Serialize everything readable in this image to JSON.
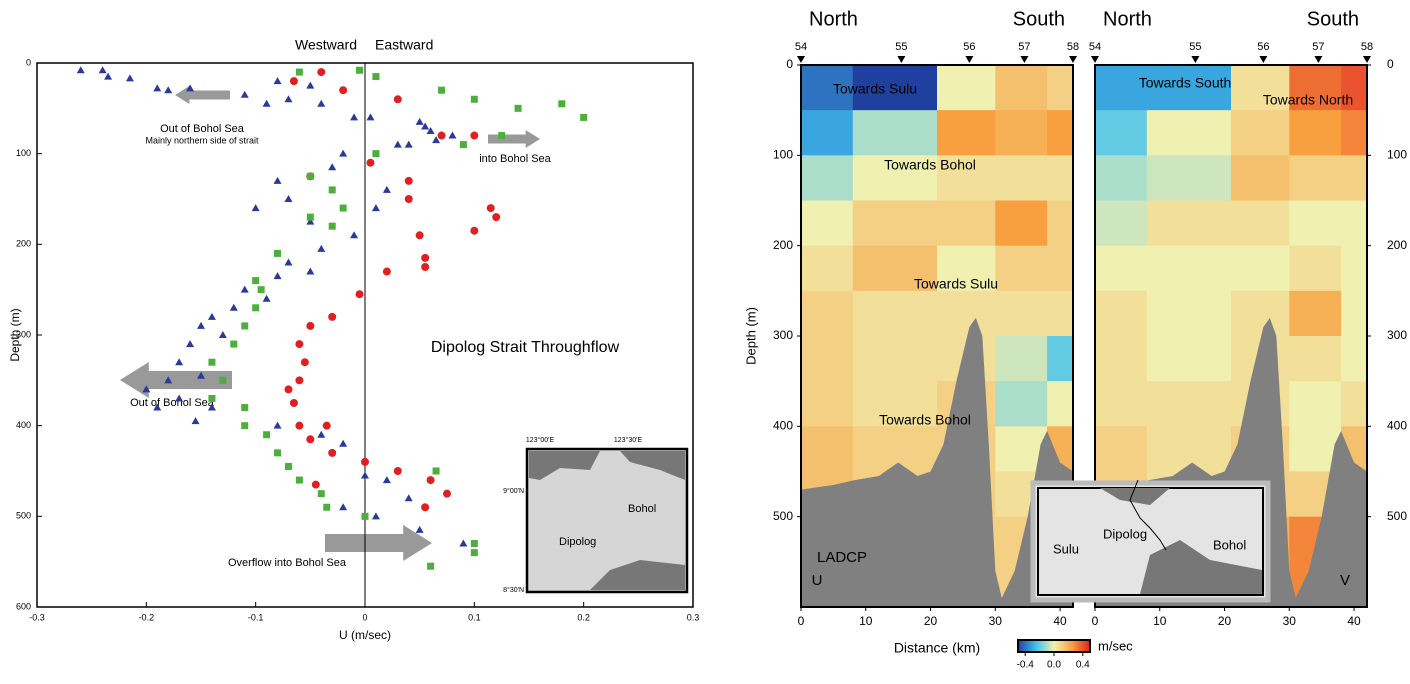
{
  "chart_data": [
    {
      "type": "scatter",
      "xlabel": "U (m/sec)",
      "ylabel": "Depth (m)",
      "top_labels": [
        "Westward",
        "Eastward"
      ],
      "annotations": [
        "Out of Bohol Sea",
        "Mainly northern side of strait",
        "into Bohol Sea",
        "Dipolog Strait Throughflow",
        "Out of Bohol Sea",
        "Overflow into Bohol Sea"
      ],
      "xlim": [
        -0.3,
        0.3
      ],
      "xticks": [
        -0.3,
        -0.2,
        -0.1,
        0,
        0.1,
        0.2,
        0.3
      ],
      "ylim": [
        0,
        600
      ],
      "yticks": [
        0,
        100,
        200,
        300,
        400,
        500,
        600
      ],
      "y_inverted": true,
      "series": [
        {
          "marker": "triangle",
          "color": "#2b3a9a",
          "x": [
            -0.26,
            -0.24,
            -0.235,
            -0.215,
            -0.19,
            -0.18,
            -0.16,
            -0.11,
            -0.09,
            -0.07,
            -0.08,
            -0.05,
            -0.04,
            -0.01,
            0.005,
            0.05,
            0.055,
            0.06,
            0.03,
            0.04,
            0.065,
            0.08,
            -0.02,
            -0.03,
            -0.08,
            -0.07,
            -0.1,
            -0.05,
            0.01,
            0.02,
            -0.01,
            -0.04,
            -0.07,
            -0.05,
            -0.08,
            -0.09,
            -0.11,
            -0.12,
            -0.14,
            -0.15,
            -0.13,
            -0.16,
            -0.17,
            -0.18,
            -0.15,
            -0.17,
            -0.19,
            -0.2,
            -0.155,
            -0.14,
            -0.08,
            -0.04,
            -0.02,
            0.0,
            0.02,
            0.04,
            -0.02,
            0.01,
            0.05,
            0.09
          ],
          "y": [
            8,
            8,
            15,
            17,
            28,
            30,
            28,
            35,
            45,
            40,
            20,
            25,
            45,
            60,
            60,
            65,
            70,
            75,
            90,
            90,
            85,
            80,
            100,
            115,
            130,
            150,
            160,
            175,
            160,
            140,
            190,
            205,
            220,
            230,
            235,
            260,
            250,
            270,
            280,
            290,
            300,
            310,
            330,
            350,
            345,
            370,
            380,
            360,
            395,
            380,
            400,
            410,
            420,
            455,
            460,
            480,
            490,
            500,
            515,
            530
          ]
        },
        {
          "marker": "circle",
          "color": "#e02020",
          "x": [
            -0.04,
            -0.065,
            -0.02,
            0.03,
            0.07,
            0.1,
            -0.05,
            0.005,
            0.04,
            0.04,
            0.115,
            0.12,
            0.1,
            0.05,
            0.055,
            0.055,
            0.02,
            -0.005,
            -0.03,
            -0.05,
            -0.06,
            -0.055,
            -0.06,
            -0.07,
            -0.065,
            -0.06,
            -0.035,
            -0.05,
            -0.03,
            0.0,
            0.03,
            0.06,
            0.075,
            0.055,
            -0.045
          ],
          "y": [
            10,
            20,
            30,
            40,
            80,
            80,
            125,
            110,
            130,
            150,
            160,
            170,
            185,
            190,
            215,
            225,
            230,
            255,
            280,
            290,
            310,
            330,
            350,
            360,
            375,
            400,
            400,
            415,
            430,
            440,
            450,
            460,
            475,
            490,
            465
          ]
        },
        {
          "marker": "square",
          "color": "#4caf3c",
          "x": [
            -0.06,
            -0.005,
            0.01,
            0.07,
            0.1,
            0.14,
            0.18,
            0.2,
            0.125,
            0.09,
            0.01,
            -0.05,
            -0.03,
            -0.02,
            -0.05,
            -0.03,
            -0.08,
            -0.1,
            -0.095,
            -0.1,
            -0.11,
            -0.12,
            -0.14,
            -0.13,
            -0.14,
            -0.11,
            -0.11,
            -0.09,
            -0.08,
            -0.07,
            -0.06,
            -0.04,
            -0.035,
            0.0,
            0.1,
            0.1,
            0.06,
            0.065
          ],
          "y": [
            10,
            8,
            15,
            30,
            40,
            50,
            45,
            60,
            80,
            90,
            100,
            125,
            140,
            160,
            170,
            180,
            210,
            240,
            250,
            270,
            290,
            310,
            330,
            350,
            370,
            380,
            400,
            410,
            430,
            445,
            460,
            475,
            490,
            500,
            530,
            540,
            555,
            450
          ]
        }
      ],
      "inset": {
        "lon_labels": [
          "123°00'E",
          "123°30'E"
        ],
        "lat_labels": [
          "9°00'N",
          "8°30'N"
        ],
        "places": [
          "Bohol",
          "Dipolog"
        ]
      }
    },
    {
      "type": "heatmap",
      "xlabel": "Distance (km)",
      "ylabel": "Depth (m)",
      "xlim": [
        0,
        42
      ],
      "xticks": [
        0,
        10,
        20,
        30,
        40
      ],
      "ylim": [
        0,
        600
      ],
      "yticks": [
        0,
        100,
        200,
        300,
        400,
        500
      ],
      "y_inverted": true,
      "ends": [
        "North",
        "South"
      ],
      "stations": [
        54,
        55,
        56,
        57,
        58
      ],
      "station_x": [
        0,
        15.5,
        26,
        34.5,
        42
      ],
      "x_edges": [
        0,
        8,
        21,
        30,
        38,
        42
      ],
      "depth_edges": [
        0,
        50,
        100,
        150,
        200,
        250,
        300,
        350,
        400,
        450,
        500,
        550,
        600
      ],
      "panels": [
        {
          "label": "U",
          "instrument": "LADCP",
          "annotations": [
            "Towards Sulu",
            "Towards Bohol",
            "Towards Sulu",
            "Towards Bohol"
          ],
          "values": [
            [
              -0.4,
              -0.3,
              -0.1,
              0,
              0.05,
              0.1,
              0.1,
              0.1,
              0.15,
              0.15,
              0.2,
              0.2
            ],
            [
              -0.5,
              -0.1,
              0,
              0.1,
              0.15,
              0.05,
              0.05,
              0.05,
              0.1,
              0.1,
              0.1,
              0.1
            ],
            [
              0,
              0.25,
              0.05,
              0.1,
              0,
              0.05,
              0.05,
              0.1,
              0.1,
              0.1,
              0.1,
              0.1
            ],
            [
              0.15,
              0.2,
              0.05,
              0.25,
              0.1,
              0.05,
              -0.05,
              -0.1,
              0,
              0.05,
              0.1,
              0.1
            ],
            [
              0.1,
              0.25,
              0.05,
              0.1,
              0.1,
              0.05,
              -0.2,
              0,
              0.2,
              0.15,
              0.1,
              0.1
            ]
          ]
        },
        {
          "label": "V",
          "annotations": [
            "Towards South",
            "Towards North"
          ],
          "values": [
            [
              -0.3,
              -0.2,
              -0.1,
              -0.05,
              0,
              0.05,
              0.05,
              0.05,
              0.1,
              0.1,
              0.1,
              0.1
            ],
            [
              -0.3,
              0,
              -0.05,
              0.05,
              0,
              0,
              0,
              0.05,
              0.05,
              0.05,
              0.1,
              0.1
            ],
            [
              0.05,
              0.1,
              0.15,
              0.05,
              0,
              0.05,
              0.05,
              0.05,
              0.1,
              0.1,
              0.2,
              0.2
            ],
            [
              0.35,
              0.25,
              0.1,
              0,
              0.05,
              0.2,
              0.05,
              0,
              0,
              0.1,
              0.3,
              0.3
            ],
            [
              0.4,
              0.3,
              0.1,
              0,
              0,
              0,
              0,
              0.05,
              0.15,
              0.2,
              0.2,
              0.2
            ]
          ]
        }
      ],
      "bathymetry": {
        "distance": [
          0,
          2,
          5,
          8,
          12,
          15,
          18,
          20,
          22,
          24,
          26,
          27,
          28,
          29,
          30,
          31,
          33,
          35,
          37,
          38,
          40,
          42
        ],
        "depth": [
          470,
          468,
          465,
          460,
          455,
          440,
          455,
          450,
          420,
          350,
          290,
          280,
          300,
          420,
          560,
          590,
          560,
          500,
          420,
          405,
          440,
          450
        ],
        "color": "#808080"
      },
      "colormap": [
        "#2040a0",
        "#40c0f0",
        "#f0f0b0",
        "#f8a040",
        "#e02020"
      ],
      "colorbar": {
        "lim": [
          -0.5,
          0.5
        ],
        "ticks": [
          -0.4,
          {
            "value": 0,
            "label": "0.0"
          },
          0.4
        ],
        "unit": "m/sec"
      },
      "inset": {
        "places": [
          "Sulu",
          "Dipolog",
          "Bohol"
        ]
      }
    }
  ]
}
